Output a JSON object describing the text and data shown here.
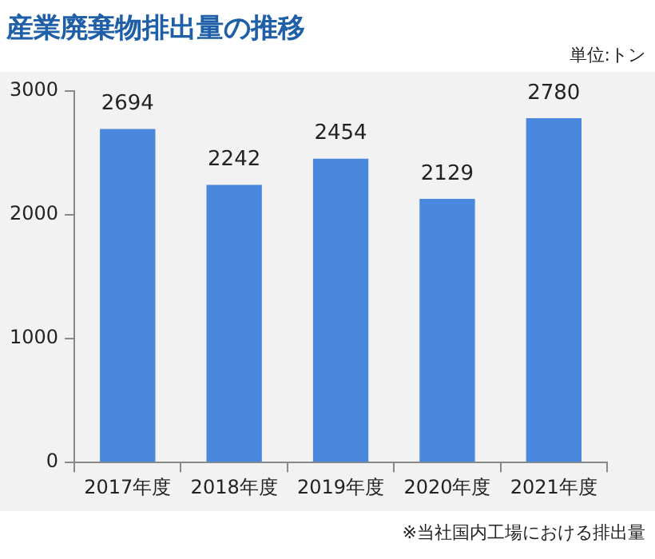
{
  "chart_data": {
    "type": "bar",
    "title": "産業廃棄物排出量の推移",
    "ylabel": "単位:トン",
    "annotations": [
      "※当社国内工場における排出量"
    ],
    "categories": [
      "2017年度",
      "2018年度",
      "2019年度",
      "2020年度",
      "2021年度"
    ],
    "values": [
      2694,
      2242,
      2454,
      2129,
      2780
    ],
    "color": "#4a88de",
    "ylim": [
      0,
      3000
    ],
    "yticks": [
      0,
      1000,
      2000,
      3000
    ],
    "grid": false,
    "data_labels": true,
    "legend": false
  }
}
